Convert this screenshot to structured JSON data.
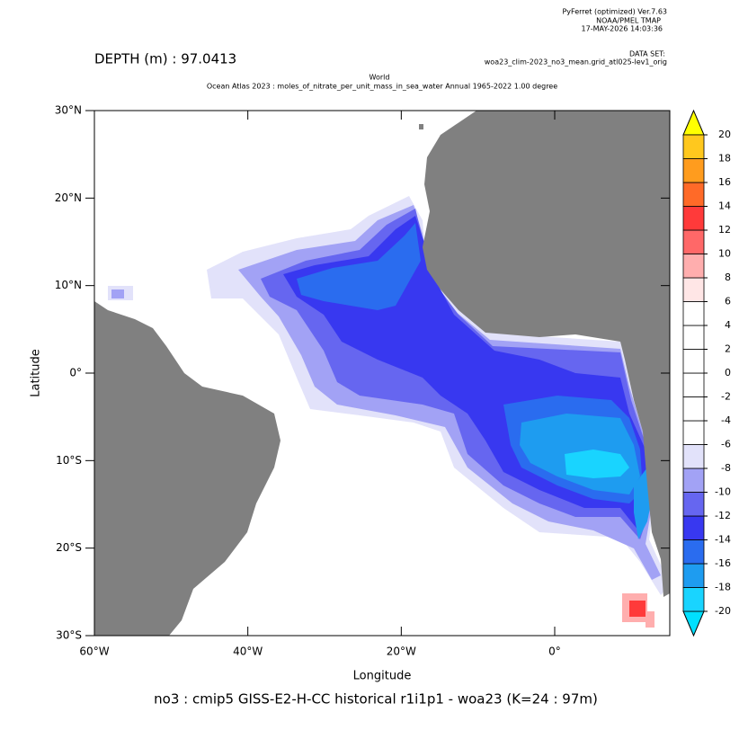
{
  "header": {
    "program": "PyFerret (optimized) Ver.7.63",
    "org": "NOAA/PMEL TMAP",
    "date": "17-MAY-2026 14:03:36",
    "dataset_label": "DATA SET:",
    "dataset": "woa23_clim-2023_no3_mean.grid_atl025-lev1_orig"
  },
  "depth_label": "DEPTH (m) : 97.0413",
  "title": "World",
  "subtitle": "Ocean Atlas 2023 : moles_of_nitrate_per_unit_mass_in_sea_water Annual 1965-2022 1.00 degree",
  "footer": "no3 : cmip5 GISS-E2-H-CC historical r1i1p1 - woa23  (K=24 : 97m)",
  "map": {
    "type": "map",
    "xlabel": "Longitude",
    "ylabel": "Latitude",
    "xlim": [
      -60,
      15
    ],
    "ylim": [
      -30,
      30
    ],
    "xticks": [
      {
        "value": -60,
        "label": "60°W"
      },
      {
        "value": -40,
        "label": "40°W"
      },
      {
        "value": -20,
        "label": "20°W"
      },
      {
        "value": 0,
        "label": "0°"
      }
    ],
    "yticks": [
      {
        "value": 30,
        "label": "30°N"
      },
      {
        "value": 20,
        "label": "20°N"
      },
      {
        "value": 10,
        "label": "10°N"
      },
      {
        "value": 0,
        "label": "0°"
      },
      {
        "value": -10,
        "label": "10°S"
      },
      {
        "value": -20,
        "label": "20°S"
      },
      {
        "value": -30,
        "label": "30°S"
      }
    ],
    "colorbar": {
      "levels": [
        -20,
        -18,
        -16,
        -14,
        -12,
        -10,
        -8,
        -6,
        -4,
        -2,
        0,
        2,
        4,
        6,
        8,
        10,
        12,
        14,
        16,
        18,
        20
      ],
      "colors": [
        "#00e0ff",
        "#19d4ff",
        "#1e9cf0",
        "#2a6cef",
        "#3838f0",
        "#6666f0",
        "#a2a2f5",
        "#e2e2fa",
        "#ffffff",
        "#ffffff",
        "#ffffff",
        "#ffffff",
        "#ffffff",
        "#ffffff",
        "#ffe6e6",
        "#ffaeae",
        "#ff6868",
        "#ff3a3a",
        "#ff6a28",
        "#ff9c1e",
        "#ffc81e",
        "#ffff00"
      ]
    }
  }
}
